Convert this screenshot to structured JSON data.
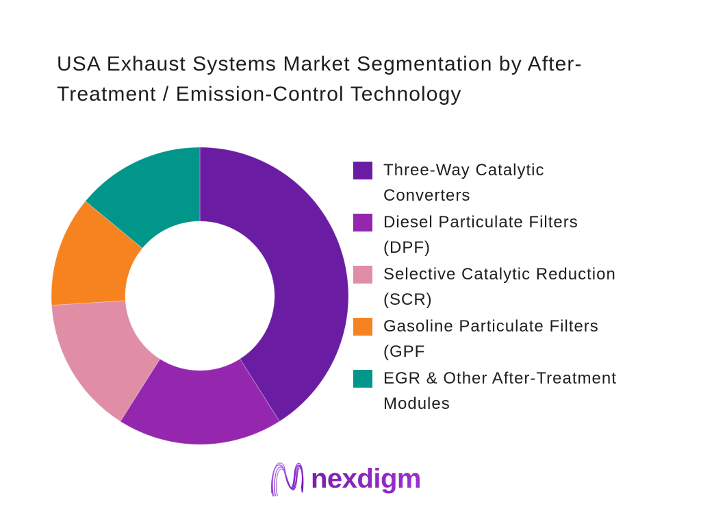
{
  "title": {
    "lines": [
      "USA Exhaust Systems Market Segmentation by After-",
      "Treatment / Emission-Control Technology"
    ]
  },
  "chart_data": {
    "type": "pie",
    "subtype": "donut",
    "title": "USA Exhaust Systems Market Segmentation by After-Treatment / Emission-Control Technology",
    "categories": [
      "Three-Way Catalytic Converters",
      "Diesel Particulate Filters (DPF)",
      "Selective Catalytic Reduction (SCR)",
      "Gasoline Particulate Filters (GPF",
      "EGR & Other After-Treatment Modules"
    ],
    "values": [
      41,
      18,
      15,
      12,
      14
    ],
    "values_note": "percent share estimated from arc angles; no numeric labels shown in chart",
    "colors": [
      "#6A1DA3",
      "#9527AE",
      "#DF8EA6",
      "#F68220",
      "#00968A"
    ],
    "start_angle_deg": 0,
    "direction": "clockwise",
    "inner_radius_ratio": 0.5,
    "legend_position": "right",
    "data_labels": false
  },
  "legend": {
    "items": [
      {
        "color": "#6A1DA3",
        "lines": [
          "Three-Way Catalytic",
          "Converters"
        ]
      },
      {
        "color": "#9527AE",
        "lines": [
          "Diesel Particulate Filters",
          "(DPF)"
        ]
      },
      {
        "color": "#DF8EA6",
        "lines": [
          "Selective Catalytic Reduction",
          "(SCR)"
        ]
      },
      {
        "color": "#F68220",
        "lines": [
          "Gasoline Particulate Filters",
          "(GPF"
        ]
      },
      {
        "color": "#00968A",
        "lines": [
          "EGR & Other After-Treatment",
          "Modules"
        ]
      }
    ]
  },
  "logo": {
    "text": "nexdigm",
    "gradient_start": "#7B1FAE",
    "gradient_end": "#9D2FD1"
  }
}
